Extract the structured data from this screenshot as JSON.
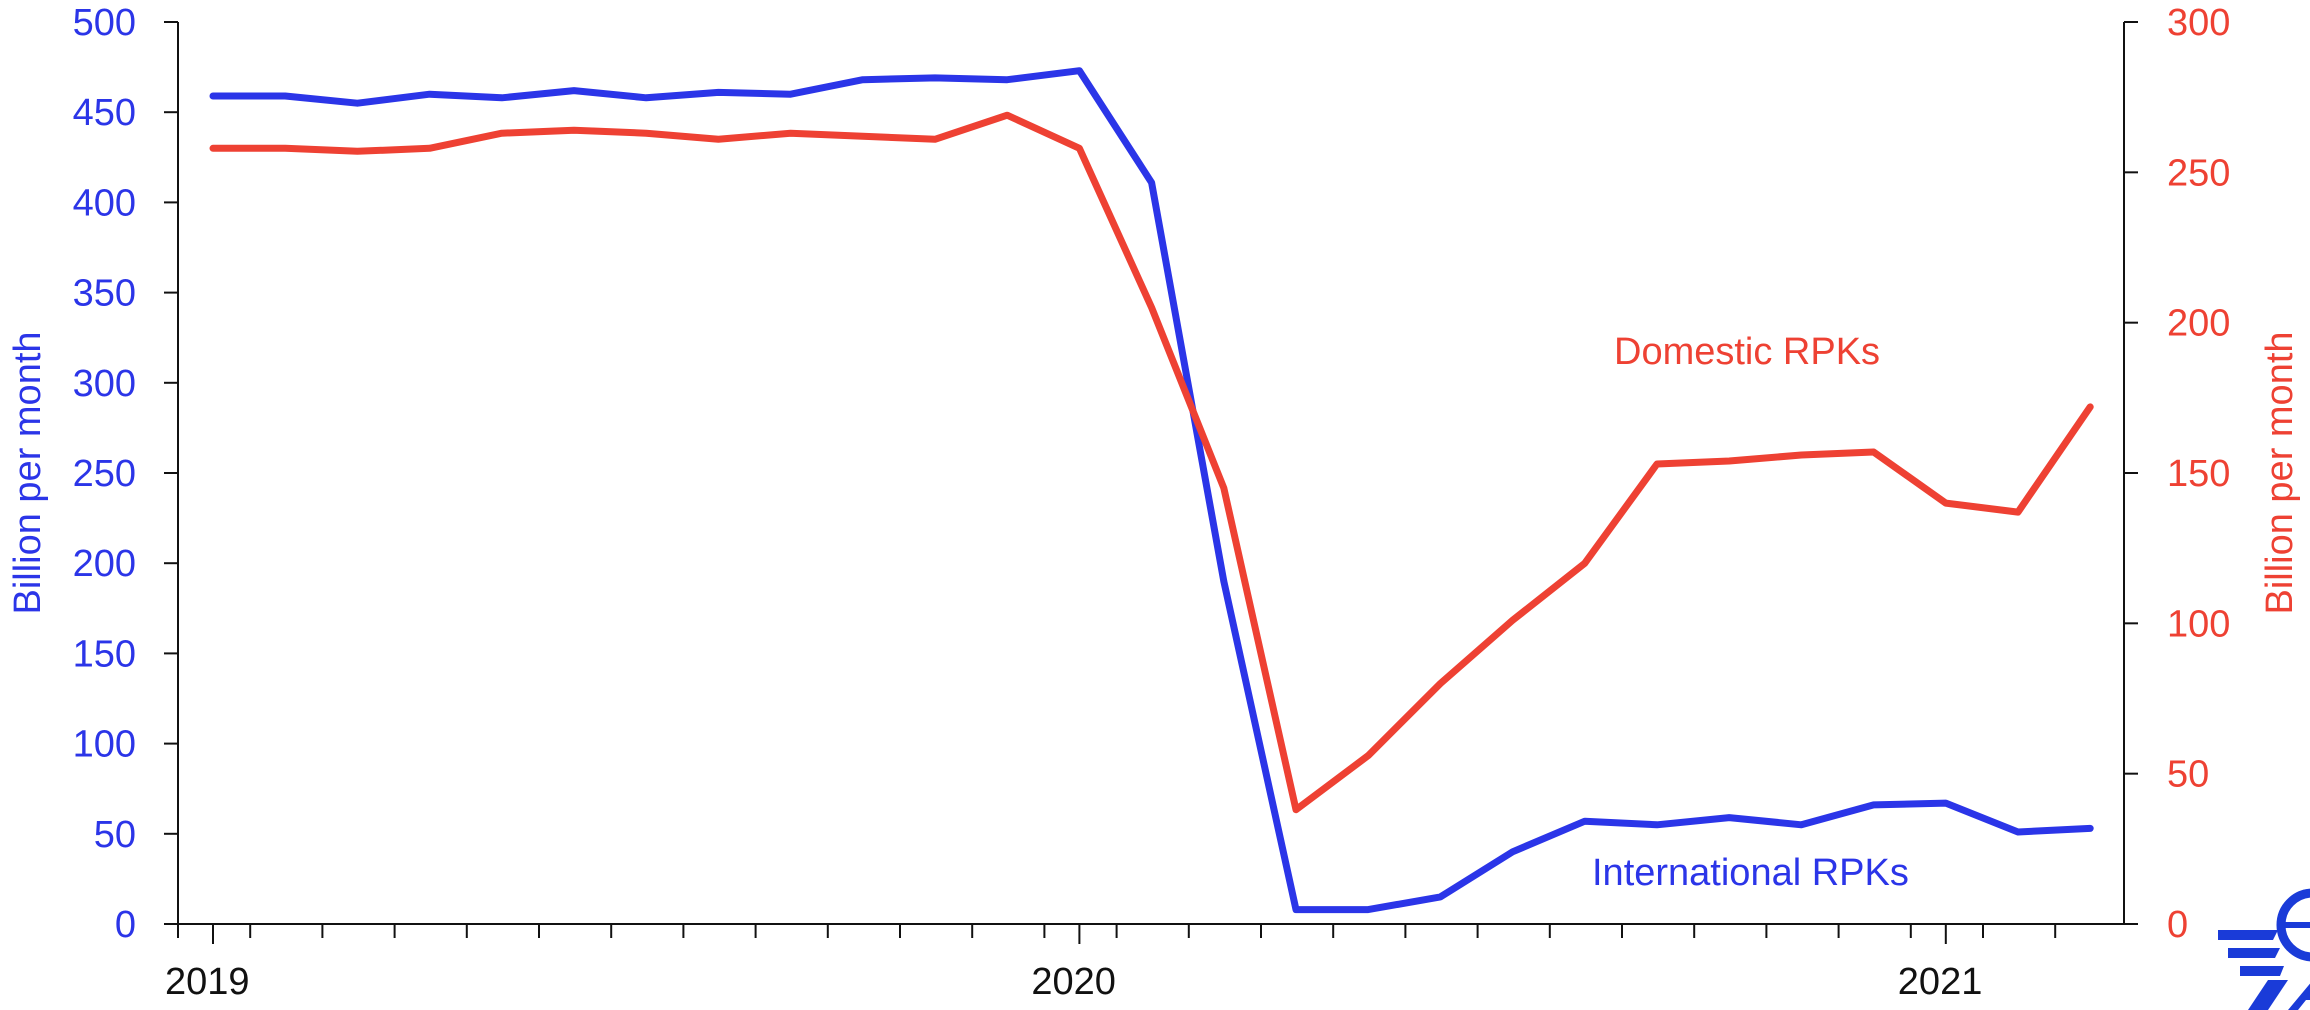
{
  "chart_data": {
    "type": "line",
    "x": [
      "2019-01",
      "2019-02",
      "2019-03",
      "2019-04",
      "2019-05",
      "2019-06",
      "2019-07",
      "2019-08",
      "2019-09",
      "2019-10",
      "2019-11",
      "2019-12",
      "2020-01",
      "2020-02",
      "2020-03",
      "2020-04",
      "2020-05",
      "2020-06",
      "2020-07",
      "2020-08",
      "2020-09",
      "2020-10",
      "2020-11",
      "2020-12",
      "2021-01",
      "2021-02",
      "2021-03"
    ],
    "x_tick_labels": [
      {
        "label": "2019",
        "at": "2019-01"
      },
      {
        "label": "2020",
        "at": "2020-01"
      },
      {
        "label": "2021",
        "at": "2021-01"
      }
    ],
    "series": [
      {
        "name": "International RPKs",
        "axis": "left",
        "color": "#2b35e8",
        "values": [
          459,
          459,
          455,
          460,
          458,
          462,
          458,
          461,
          460,
          468,
          469,
          468,
          473,
          411,
          190,
          8,
          8,
          15,
          40,
          57,
          55,
          59,
          55,
          66,
          67,
          51,
          53
        ]
      },
      {
        "name": "Domestic RPKs",
        "axis": "right",
        "color": "#ee4133",
        "values": [
          258,
          258,
          257,
          258,
          263,
          264,
          263,
          261,
          263,
          262,
          261,
          269,
          258,
          205,
          145,
          38,
          56,
          80,
          101,
          120,
          153,
          154,
          156,
          157,
          140,
          137,
          172
        ]
      }
    ],
    "y_left": {
      "label": "Billion per month",
      "min": 0,
      "max": 500,
      "ticks": [
        0,
        50,
        100,
        150,
        200,
        250,
        300,
        350,
        400,
        450,
        500
      ],
      "color": "#2b35e8"
    },
    "y_right": {
      "label": "Billion per month",
      "min": 0,
      "max": 300,
      "ticks": [
        0,
        50,
        100,
        150,
        200,
        250,
        300
      ],
      "color": "#ee4133"
    },
    "grid": false,
    "legend": "inline labels"
  },
  "logo_icon": "iata-globe-logo"
}
